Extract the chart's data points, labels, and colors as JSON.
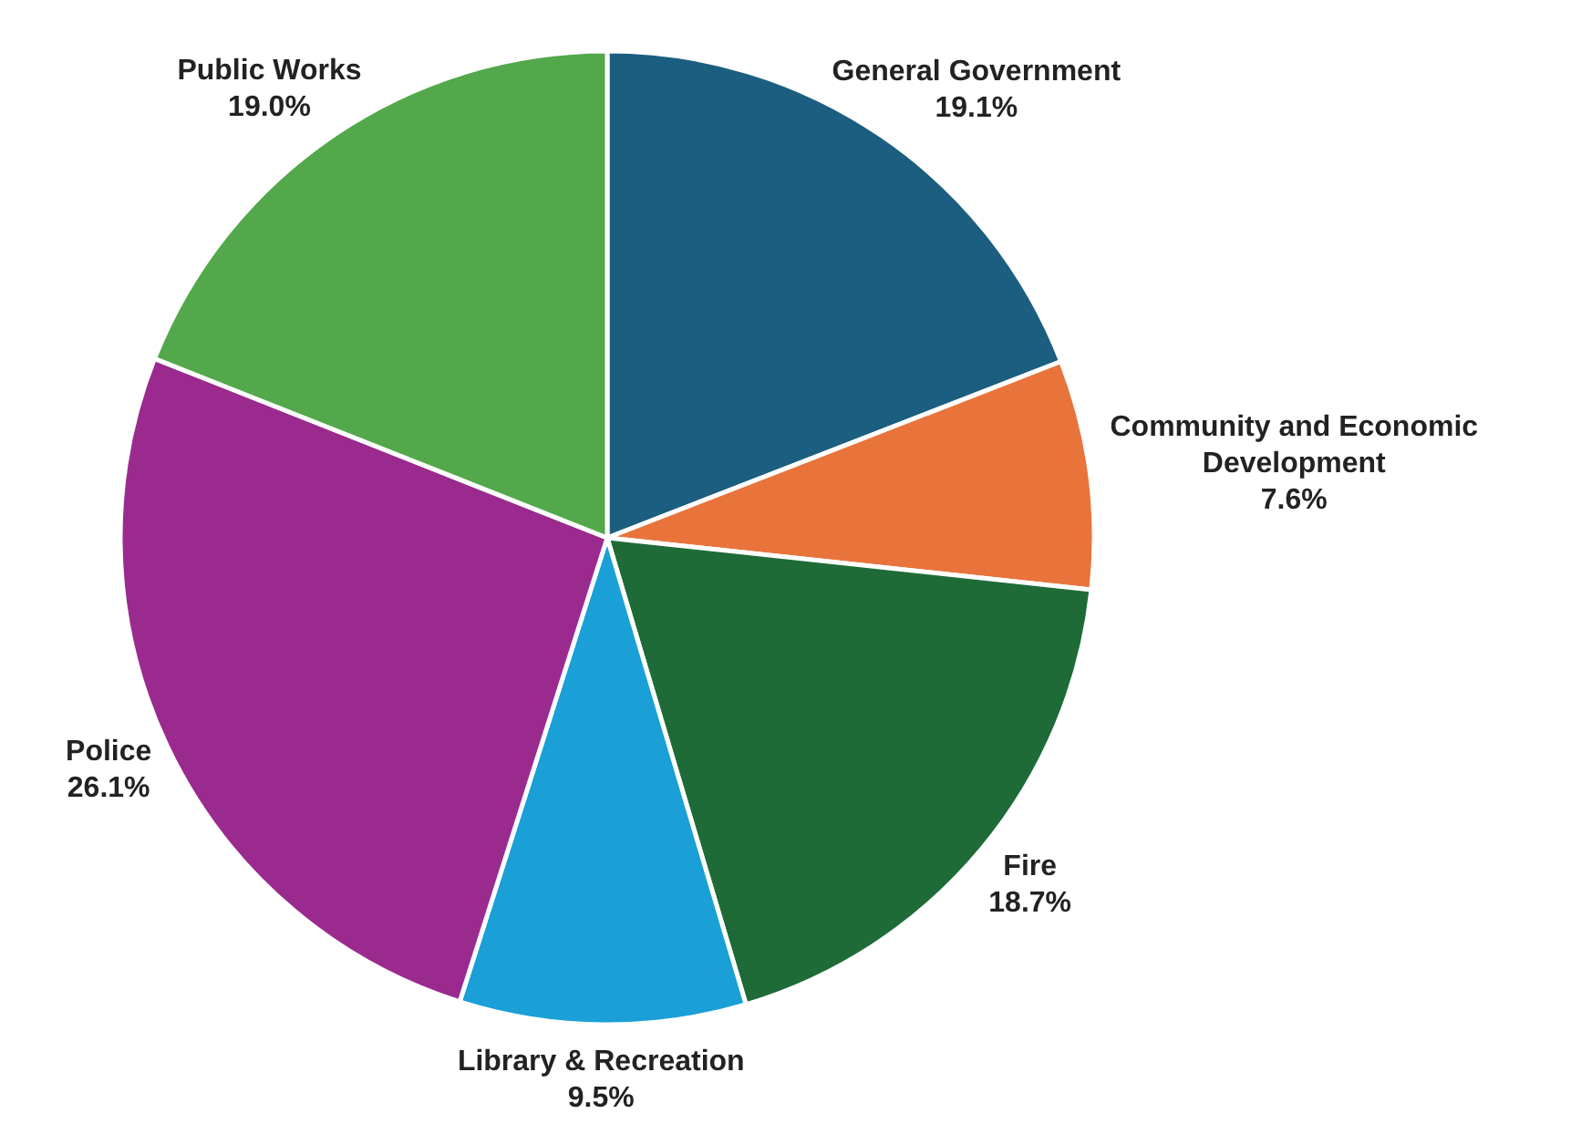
{
  "chart_data": {
    "type": "pie",
    "categories": [
      "General Government",
      "Community and Economic Development",
      "Fire",
      "Library & Recreation",
      "Police",
      "Public Works"
    ],
    "values": [
      19.1,
      7.6,
      18.7,
      9.5,
      26.1,
      19.0
    ],
    "colors": [
      "#1b5e80",
      "#e8743b",
      "#1e6b38",
      "#1a9fd6",
      "#9b2a8e",
      "#52a84a"
    ],
    "value_labels": [
      "19.1%",
      "7.6%",
      "18.7%",
      "9.5%",
      "26.1%",
      "19.0%"
    ]
  }
}
